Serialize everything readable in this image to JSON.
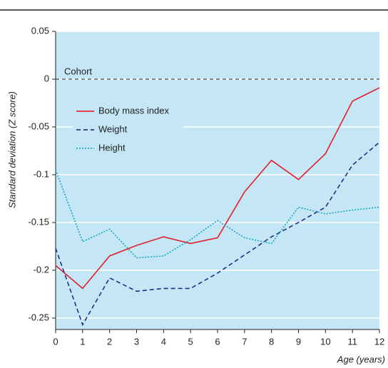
{
  "chart_data": {
    "type": "line",
    "x": [
      0,
      1,
      2,
      3,
      4,
      5,
      6,
      7,
      8,
      9,
      10,
      11,
      12
    ],
    "xlim": [
      0,
      12
    ],
    "xticks": [
      0,
      1,
      2,
      3,
      4,
      5,
      6,
      7,
      8,
      9,
      10,
      11,
      12
    ],
    "ylim": [
      -0.262,
      0.05
    ],
    "yticks": [
      0.05,
      0,
      -0.05,
      -0.1,
      -0.15,
      -0.2,
      -0.25
    ],
    "x_label": "Age (years)",
    "y_label": "Standard deviation (Z score)",
    "grid": true,
    "legend": "upper left",
    "reference_line": {
      "value": 0,
      "label": "Cohort"
    },
    "series": [
      {
        "name": "Body mass index",
        "color": "#e0202a",
        "dash": "solid",
        "values": [
          -0.195,
          -0.219,
          -0.185,
          -0.174,
          -0.165,
          -0.172,
          -0.166,
          -0.118,
          -0.085,
          -0.105,
          -0.078,
          -0.023,
          -0.009
        ]
      },
      {
        "name": "Weight",
        "color": "#1f2f85",
        "dash": "dashed",
        "values": [
          -0.177,
          -0.257,
          -0.208,
          -0.222,
          -0.219,
          -0.219,
          -0.203,
          -0.184,
          -0.165,
          -0.15,
          -0.134,
          -0.09,
          -0.066
        ]
      },
      {
        "name": "Height",
        "color": "#14a8c0",
        "dash": "dotted",
        "values": [
          -0.095,
          -0.17,
          -0.157,
          -0.187,
          -0.185,
          -0.168,
          -0.148,
          -0.166,
          -0.172,
          -0.134,
          -0.141,
          -0.137,
          -0.134
        ]
      }
    ]
  }
}
